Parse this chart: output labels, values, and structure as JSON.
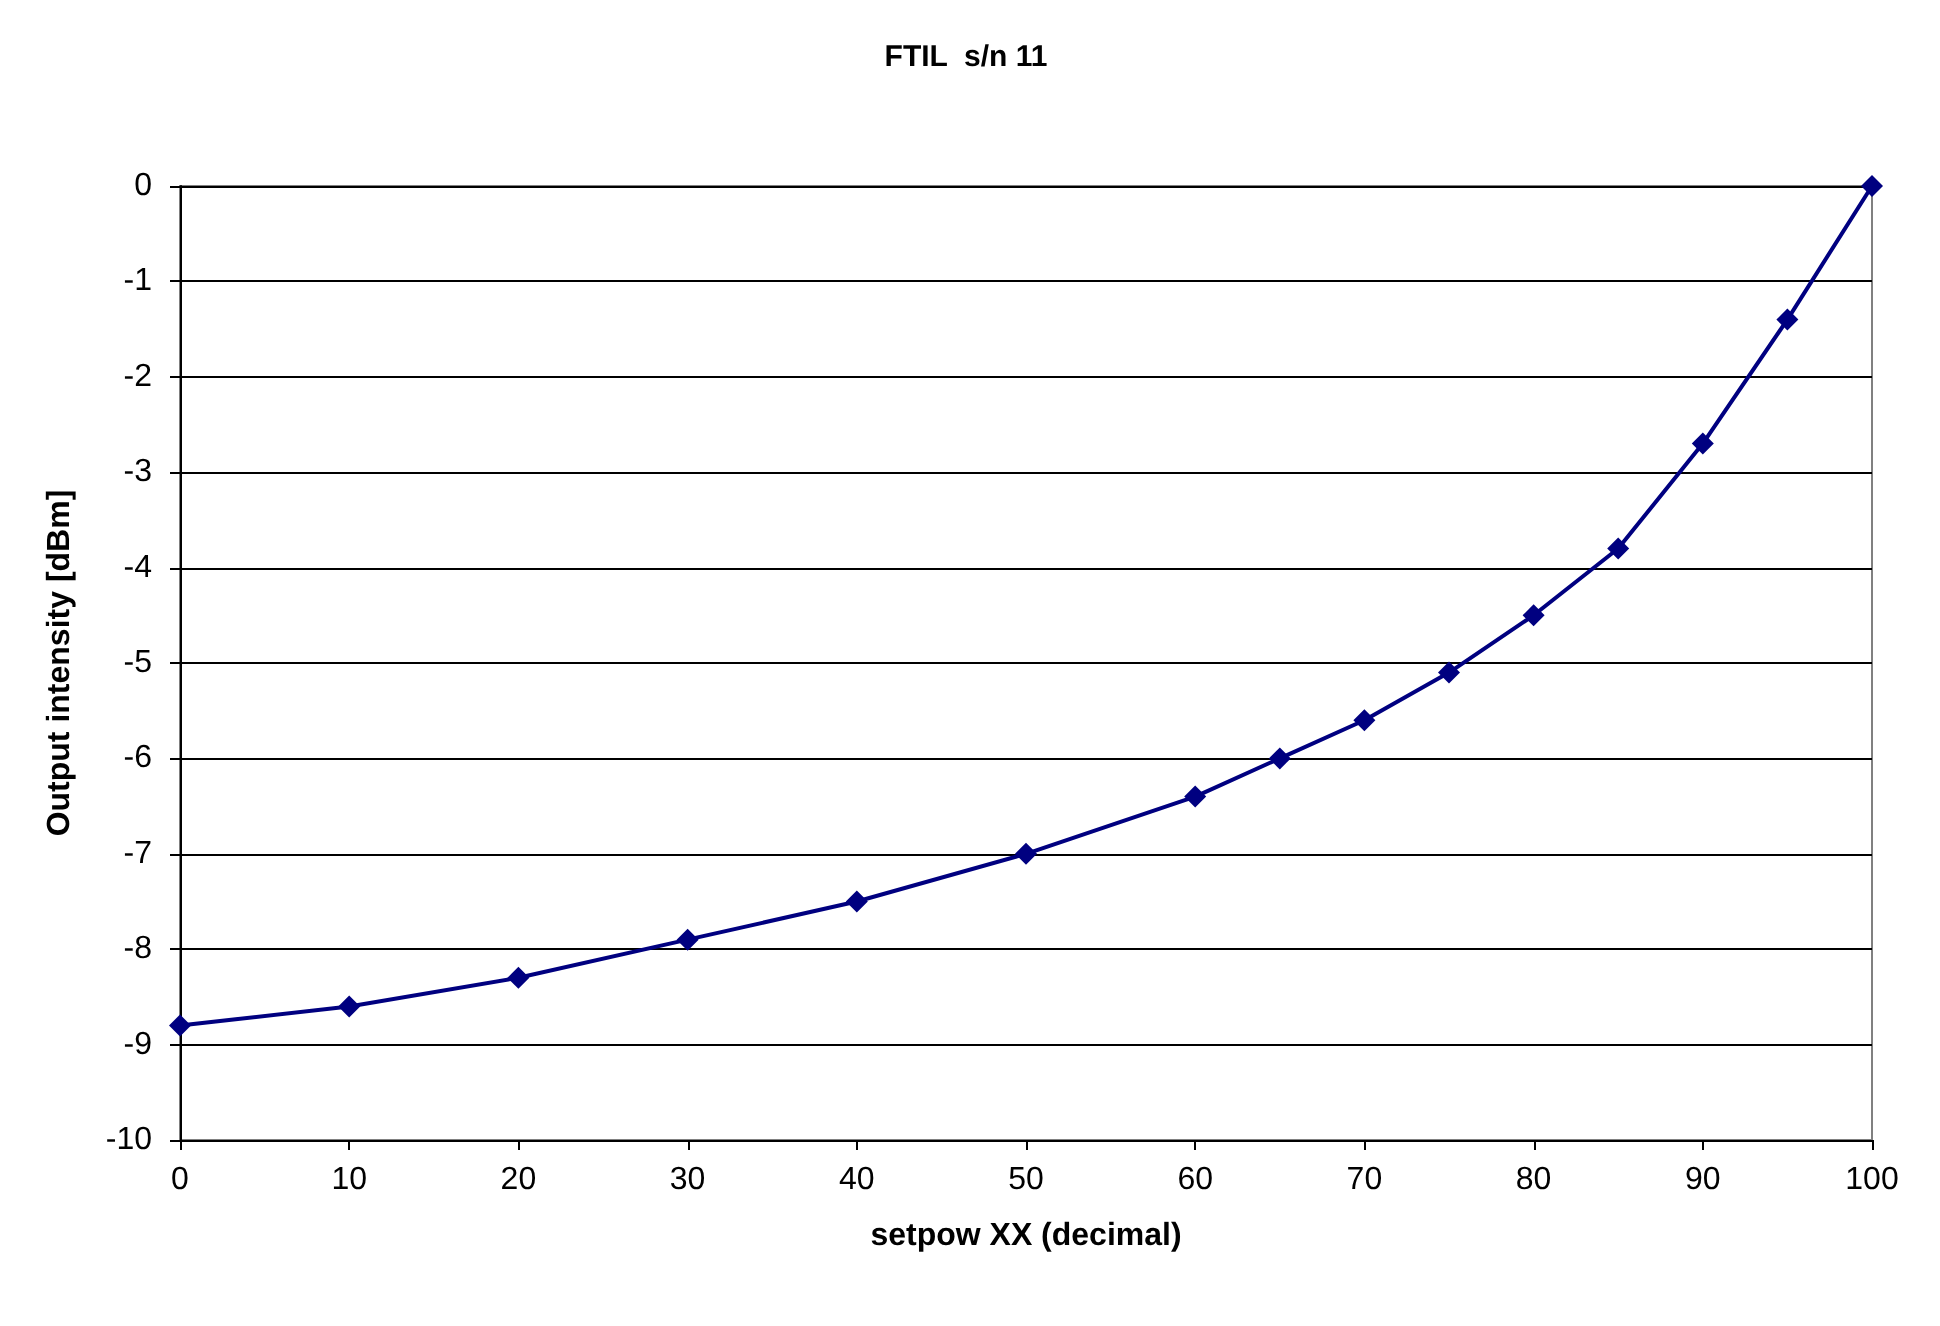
{
  "chart_data": {
    "type": "line",
    "title": "FTIL  s/n 11",
    "xlabel": "setpow XX (decimal)",
    "ylabel": "Output intensity [dBm]",
    "x": [
      0,
      10,
      20,
      30,
      40,
      50,
      60,
      65,
      70,
      75,
      80,
      85,
      90,
      95,
      100
    ],
    "series": [
      {
        "color": "#000080",
        "values": [
          -8.8,
          -8.6,
          -8.3,
          -7.9,
          -7.5,
          -7.0,
          -6.4,
          -6.0,
          -5.6,
          -5.1,
          -4.5,
          -3.8,
          -2.7,
          -1.4,
          0
        ]
      }
    ],
    "xlim": [
      0,
      100
    ],
    "xticks": [
      0,
      10,
      20,
      30,
      40,
      50,
      60,
      70,
      80,
      90,
      100
    ],
    "ylim": [
      -10,
      0
    ],
    "yticks": [
      -10,
      -9,
      -8,
      -7,
      -6,
      -5,
      -4,
      -3,
      -2,
      -1,
      0
    ],
    "grid": "y",
    "marker": "diamond",
    "line_style": "solid"
  }
}
